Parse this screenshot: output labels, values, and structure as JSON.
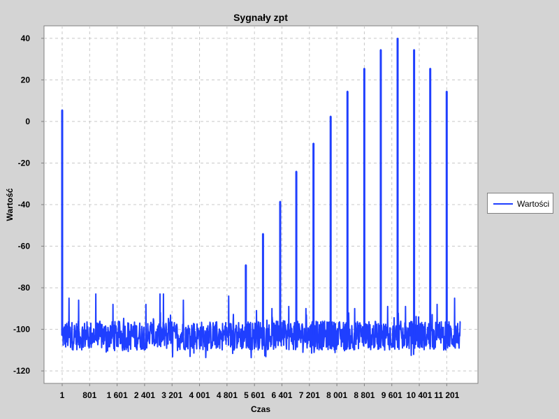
{
  "chart_data": {
    "type": "line",
    "title": "Sygnały zpt",
    "xlabel": "Czas",
    "ylabel": "Wartość",
    "xlim": [
      1,
      11601
    ],
    "ylim": [
      -126,
      46
    ],
    "yticks": [
      40,
      20,
      0,
      -20,
      -40,
      -60,
      -80,
      -100,
      -120
    ],
    "xticks": [
      {
        "value": 1,
        "label": "1"
      },
      {
        "value": 801,
        "label": "801"
      },
      {
        "value": 1601,
        "label": "1 601"
      },
      {
        "value": 2401,
        "label": "2 401"
      },
      {
        "value": 3201,
        "label": "3 201"
      },
      {
        "value": 4001,
        "label": "4 001"
      },
      {
        "value": 4801,
        "label": "4 801"
      },
      {
        "value": 5601,
        "label": "5 601"
      },
      {
        "value": 6401,
        "label": "6 401"
      },
      {
        "value": 7201,
        "label": "7 201"
      },
      {
        "value": 8001,
        "label": "8 001"
      },
      {
        "value": 8801,
        "label": "8 801"
      },
      {
        "value": 9601,
        "label": "9 601"
      },
      {
        "value": 10401,
        "label": "10 401"
      },
      {
        "value": 11201,
        "label": "11 201"
      }
    ],
    "grid": true,
    "legend_position": "right",
    "series": [
      {
        "name": "Wartości",
        "color": "#1f3fff",
        "baseline": -103,
        "noise_range": [
          -114,
          -92
        ],
        "end_x": 11601,
        "peaks": [
          {
            "x": 1,
            "y": 5.5
          },
          {
            "x": 5350,
            "y": -69
          },
          {
            "x": 5850,
            "y": -54
          },
          {
            "x": 6350,
            "y": -38.5
          },
          {
            "x": 6820,
            "y": -24
          },
          {
            "x": 7320,
            "y": -10.5
          },
          {
            "x": 7820,
            "y": 2.5
          },
          {
            "x": 8310,
            "y": 14.5
          },
          {
            "x": 8800,
            "y": 25.5
          },
          {
            "x": 9280,
            "y": 34.5
          },
          {
            "x": 9770,
            "y": 40
          },
          {
            "x": 10250,
            "y": 34.5
          },
          {
            "x": 10720,
            "y": 25.5
          },
          {
            "x": 11200,
            "y": 14.5
          }
        ],
        "secondary_spikes": [
          {
            "x": 200,
            "y": -85
          },
          {
            "x": 480,
            "y": -86
          },
          {
            "x": 980,
            "y": -83
          },
          {
            "x": 1480,
            "y": -88
          },
          {
            "x": 2440,
            "y": -88
          },
          {
            "x": 2850,
            "y": -83
          },
          {
            "x": 2950,
            "y": -83
          },
          {
            "x": 3530,
            "y": -86
          },
          {
            "x": 4850,
            "y": -84
          },
          {
            "x": 5660,
            "y": -91
          },
          {
            "x": 6110,
            "y": -90
          },
          {
            "x": 6600,
            "y": -89
          },
          {
            "x": 7100,
            "y": -90
          },
          {
            "x": 8520,
            "y": -90
          },
          {
            "x": 9480,
            "y": -89
          },
          {
            "x": 10000,
            "y": -89
          },
          {
            "x": 10920,
            "y": -88
          },
          {
            "x": 11430,
            "y": -85
          }
        ]
      }
    ]
  }
}
